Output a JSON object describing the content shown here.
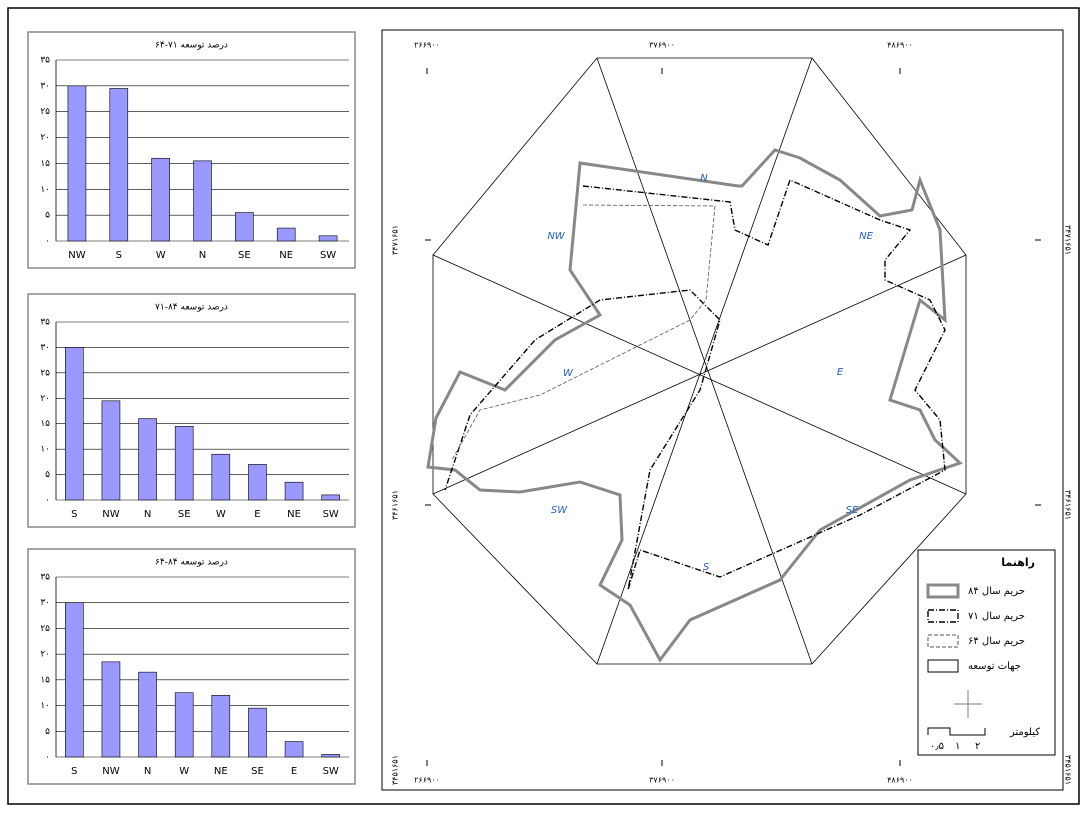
{
  "chart_data": [
    {
      "type": "bar",
      "title": "درصد توسعه ۷۱-۶۴",
      "color": "#9999ff",
      "categories": [
        "NW",
        "S",
        "W",
        "N",
        "SE",
        "NE",
        "SW"
      ],
      "values": [
        30,
        29.5,
        16,
        15.5,
        5.5,
        2.5,
        1
      ],
      "ylim": [
        0,
        35
      ],
      "yticks": [
        {
          "value": 0,
          "label": "۰"
        },
        {
          "value": 5,
          "label": "۵"
        },
        {
          "value": 10,
          "label": "۱۰"
        },
        {
          "value": 15,
          "label": "۱۵"
        },
        {
          "value": 20,
          "label": "۲۰"
        },
        {
          "value": 25,
          "label": "۲۵"
        },
        {
          "value": 30,
          "label": "۳۰"
        },
        {
          "value": 35,
          "label": "۳۵"
        }
      ],
      "grid": true
    },
    {
      "type": "bar",
      "title": "درصد توسعه ۸۴-۷۱",
      "color": "#9999ff",
      "categories": [
        "S",
        "NW",
        "N",
        "SE",
        "W",
        "E",
        "NE",
        "SW"
      ],
      "values": [
        30,
        19.5,
        16,
        14.5,
        9,
        7,
        3.5,
        1
      ],
      "ylim": [
        0,
        35
      ],
      "yticks": [
        {
          "value": 0,
          "label": "۰"
        },
        {
          "value": 5,
          "label": "۵"
        },
        {
          "value": 10,
          "label": "۱۰"
        },
        {
          "value": 15,
          "label": "۱۵"
        },
        {
          "value": 20,
          "label": "۲۰"
        },
        {
          "value": 25,
          "label": "۲۵"
        },
        {
          "value": 30,
          "label": "۳۰"
        },
        {
          "value": 35,
          "label": "۳۵"
        }
      ],
      "grid": true
    },
    {
      "type": "bar",
      "title": "درصد توسعه ۸۴-۶۴",
      "color": "#9999ff",
      "categories": [
        "S",
        "NW",
        "N",
        "W",
        "NE",
        "SE",
        "E",
        "SW"
      ],
      "values": [
        30,
        18.5,
        16.5,
        12.5,
        12,
        9.5,
        3,
        0.5
      ],
      "ylim": [
        0,
        35
      ],
      "yticks": [
        {
          "value": 0,
          "label": "۰"
        },
        {
          "value": 5,
          "label": "۵"
        },
        {
          "value": 10,
          "label": "۱۰"
        },
        {
          "value": 15,
          "label": "۱۵"
        },
        {
          "value": 20,
          "label": "۲۰"
        },
        {
          "value": 25,
          "label": "۲۵"
        },
        {
          "value": 30,
          "label": "۳۰"
        },
        {
          "value": 35,
          "label": "۳۵"
        }
      ],
      "grid": true
    }
  ],
  "map": {
    "x_coords": [
      "۲۶۶۹۰۰",
      "۳۷۶۹۰۰",
      "۴۸۶۹۰۰"
    ],
    "y_coords": [
      "۳۴۷۱۶۵۱",
      "۳۴۶۱۶۵۱",
      "۳۴۵۱۶۵۱"
    ],
    "directions": [
      "N",
      "NE",
      "E",
      "SE",
      "S",
      "SW",
      "W",
      "NW"
    ],
    "legend": {
      "title": "راهنما",
      "items": [
        "حریم سال ۸۴",
        "حریم سال ۷۱",
        "حریم سال ۶۴",
        "جهات توسعه"
      ],
      "scale_unit": "کیلومتر",
      "scale_ticks": [
        "۰٫۵",
        "۱",
        "۲"
      ]
    }
  }
}
